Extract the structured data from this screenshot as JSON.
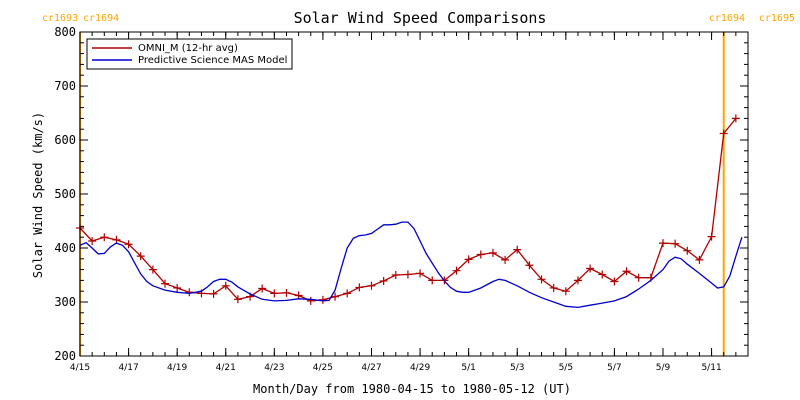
{
  "chart_data": {
    "type": "line",
    "title": "Solar Wind Speed Comparisons",
    "xlabel": "Month/Day from 1980-04-15 to 1980-05-12 (UT)",
    "ylabel": "Solar Wind Speed (km/s)",
    "ylim": [
      200,
      800
    ],
    "yticks": [
      200,
      300,
      400,
      500,
      600,
      700,
      800
    ],
    "xlim": [
      "1980-04-15",
      "1980-05-12"
    ],
    "xticks": [
      {
        "label": "4/15",
        "date": "1980-04-15"
      },
      {
        "label": "4/17",
        "date": "1980-04-17"
      },
      {
        "label": "4/19",
        "date": "1980-04-19"
      },
      {
        "label": "4/21",
        "date": "1980-04-21"
      },
      {
        "label": "4/23",
        "date": "1980-04-23"
      },
      {
        "label": "4/25",
        "date": "1980-04-25"
      },
      {
        "label": "4/27",
        "date": "1980-04-27"
      },
      {
        "label": "4/29",
        "date": "1980-04-29"
      },
      {
        "label": "5/1",
        "date": "1980-05-01"
      },
      {
        "label": "5/3",
        "date": "1980-05-03"
      },
      {
        "label": "5/5",
        "date": "1980-05-05"
      },
      {
        "label": "5/7",
        "date": "1980-05-07"
      },
      {
        "label": "5/9",
        "date": "1980-05-09"
      },
      {
        "label": "5/11",
        "date": "1980-05-11"
      }
    ],
    "legend": {
      "placement": "top-left"
    },
    "markers": [
      {
        "label_left": "cr1693",
        "label_right": "cr1694",
        "date": "1980-04-15 00:00",
        "color": "#FFA500"
      },
      {
        "label_left": "cr1694",
        "label_right": "cr1695",
        "date": "1980-05-11 12:00",
        "color": "#FFA500"
      }
    ],
    "series": [
      {
        "name": "OMNI_M (12-hr avg)",
        "color": "#B00000",
        "marker": "plus",
        "points": [
          [
            "1980-04-15 00:00",
            437
          ],
          [
            "1980-04-15 12:00",
            413
          ],
          [
            "1980-04-16 00:00",
            420
          ],
          [
            "1980-04-16 12:00",
            415
          ],
          [
            "1980-04-17 00:00",
            407
          ],
          [
            "1980-04-17 12:00",
            385
          ],
          [
            "1980-04-18 00:00",
            360
          ],
          [
            "1980-04-18 12:00",
            334
          ],
          [
            "1980-04-19 00:00",
            326
          ],
          [
            "1980-04-19 12:00",
            318
          ],
          [
            "1980-04-20 00:00",
            316
          ],
          [
            "1980-04-20 12:00",
            315
          ],
          [
            "1980-04-21 00:00",
            330
          ],
          [
            "1980-04-21 12:00",
            305
          ],
          [
            "1980-04-22 00:00",
            310
          ],
          [
            "1980-04-22 12:00",
            325
          ],
          [
            "1980-04-23 00:00",
            316
          ],
          [
            "1980-04-23 12:00",
            317
          ],
          [
            "1980-04-24 00:00",
            312
          ],
          [
            "1980-04-24 12:00",
            302
          ],
          [
            "1980-04-25 00:00",
            304
          ],
          [
            "1980-04-25 12:00",
            310
          ],
          [
            "1980-04-26 00:00",
            316
          ],
          [
            "1980-04-26 12:00",
            327
          ],
          [
            "1980-04-27 00:00",
            330
          ],
          [
            "1980-04-27 12:00",
            339
          ],
          [
            "1980-04-28 00:00",
            350
          ],
          [
            "1980-04-28 12:00",
            351
          ],
          [
            "1980-04-29 00:00",
            353
          ],
          [
            "1980-04-29 12:00",
            340
          ],
          [
            "1980-04-30 00:00",
            340
          ],
          [
            "1980-04-30 12:00",
            358
          ],
          [
            "1980-05-01 00:00",
            379
          ],
          [
            "1980-05-01 12:00",
            388
          ],
          [
            "1980-05-02 00:00",
            391
          ],
          [
            "1980-05-02 12:00",
            378
          ],
          [
            "1980-05-03 00:00",
            397
          ],
          [
            "1980-05-03 12:00",
            368
          ],
          [
            "1980-05-04 00:00",
            342
          ],
          [
            "1980-05-04 12:00",
            326
          ],
          [
            "1980-05-05 00:00",
            320
          ],
          [
            "1980-05-05 12:00",
            340
          ],
          [
            "1980-05-06 00:00",
            362
          ],
          [
            "1980-05-06 12:00",
            351
          ],
          [
            "1980-05-07 00:00",
            338
          ],
          [
            "1980-05-07 12:00",
            357
          ],
          [
            "1980-05-08 00:00",
            345
          ],
          [
            "1980-05-08 12:00",
            345
          ],
          [
            "1980-05-09 00:00",
            409
          ],
          [
            "1980-05-09 12:00",
            408
          ],
          [
            "1980-05-10 00:00",
            395
          ],
          [
            "1980-05-10 12:00",
            378
          ],
          [
            "1980-05-11 00:00",
            421
          ],
          [
            "1980-05-11 12:00",
            612
          ],
          [
            "1980-05-12 00:00",
            640
          ]
        ]
      },
      {
        "name": "Predictive Science MAS Model",
        "color": "#0000CC",
        "marker": "none",
        "points": [
          [
            "1980-04-15 00:00",
            405
          ],
          [
            "1980-04-15 06:00",
            410
          ],
          [
            "1980-04-15 12:00",
            400
          ],
          [
            "1980-04-15 18:00",
            389
          ],
          [
            "1980-04-16 00:00",
            390
          ],
          [
            "1980-04-16 06:00",
            402
          ],
          [
            "1980-04-16 12:00",
            409
          ],
          [
            "1980-04-16 18:00",
            405
          ],
          [
            "1980-04-17 00:00",
            393
          ],
          [
            "1980-04-17 06:00",
            372
          ],
          [
            "1980-04-17 12:00",
            352
          ],
          [
            "1980-04-17 18:00",
            338
          ],
          [
            "1980-04-18 00:00",
            330
          ],
          [
            "1980-04-18 12:00",
            322
          ],
          [
            "1980-04-19 00:00",
            318
          ],
          [
            "1980-04-19 12:00",
            316
          ],
          [
            "1980-04-20 00:00",
            320
          ],
          [
            "1980-04-20 06:00",
            328
          ],
          [
            "1980-04-20 12:00",
            338
          ],
          [
            "1980-04-20 18:00",
            342
          ],
          [
            "1980-04-21 00:00",
            342
          ],
          [
            "1980-04-21 06:00",
            337
          ],
          [
            "1980-04-21 12:00",
            328
          ],
          [
            "1980-04-22 00:00",
            315
          ],
          [
            "1980-04-22 12:00",
            305
          ],
          [
            "1980-04-23 00:00",
            302
          ],
          [
            "1980-04-23 12:00",
            303
          ],
          [
            "1980-04-24 00:00",
            306
          ],
          [
            "1980-04-24 12:00",
            305
          ],
          [
            "1980-04-25 00:00",
            302
          ],
          [
            "1980-04-25 06:00",
            303
          ],
          [
            "1980-04-25 12:00",
            322
          ],
          [
            "1980-04-25 18:00",
            362
          ],
          [
            "1980-04-26 00:00",
            400
          ],
          [
            "1980-04-26 06:00",
            418
          ],
          [
            "1980-04-26 12:00",
            423
          ],
          [
            "1980-04-26 18:00",
            424
          ],
          [
            "1980-04-27 00:00",
            427
          ],
          [
            "1980-04-27 06:00",
            435
          ],
          [
            "1980-04-27 12:00",
            443
          ],
          [
            "1980-04-27 18:00",
            443
          ],
          [
            "1980-04-28 00:00",
            444
          ],
          [
            "1980-04-28 06:00",
            448
          ],
          [
            "1980-04-28 12:00",
            448
          ],
          [
            "1980-04-28 18:00",
            436
          ],
          [
            "1980-04-29 00:00",
            413
          ],
          [
            "1980-04-29 06:00",
            390
          ],
          [
            "1980-04-29 12:00",
            372
          ],
          [
            "1980-04-29 18:00",
            354
          ],
          [
            "1980-04-30 00:00",
            339
          ],
          [
            "1980-04-30 06:00",
            327
          ],
          [
            "1980-04-30 12:00",
            320
          ],
          [
            "1980-04-30 18:00",
            318
          ],
          [
            "1980-05-01 00:00",
            318
          ],
          [
            "1980-05-01 12:00",
            326
          ],
          [
            "1980-05-02 00:00",
            338
          ],
          [
            "1980-05-02 06:00",
            342
          ],
          [
            "1980-05-02 12:00",
            340
          ],
          [
            "1980-05-03 00:00",
            330
          ],
          [
            "1980-05-03 12:00",
            318
          ],
          [
            "1980-05-04 00:00",
            308
          ],
          [
            "1980-05-04 12:00",
            300
          ],
          [
            "1980-05-05 00:00",
            292
          ],
          [
            "1980-05-05 12:00",
            290
          ],
          [
            "1980-05-06 00:00",
            294
          ],
          [
            "1980-05-06 12:00",
            298
          ],
          [
            "1980-05-07 00:00",
            302
          ],
          [
            "1980-05-07 12:00",
            310
          ],
          [
            "1980-05-08 00:00",
            324
          ],
          [
            "1980-05-08 12:00",
            340
          ],
          [
            "1980-05-09 00:00",
            360
          ],
          [
            "1980-05-09 06:00",
            376
          ],
          [
            "1980-05-09 12:00",
            383
          ],
          [
            "1980-05-09 18:00",
            380
          ],
          [
            "1980-05-10 00:00",
            370
          ],
          [
            "1980-05-10 12:00",
            353
          ],
          [
            "1980-05-11 00:00",
            335
          ],
          [
            "1980-05-11 06:00",
            326
          ],
          [
            "1980-05-11 12:00",
            328
          ],
          [
            "1980-05-11 18:00",
            348
          ],
          [
            "1980-05-12 00:00",
            385
          ],
          [
            "1980-05-12 06:00",
            420
          ]
        ]
      }
    ]
  }
}
